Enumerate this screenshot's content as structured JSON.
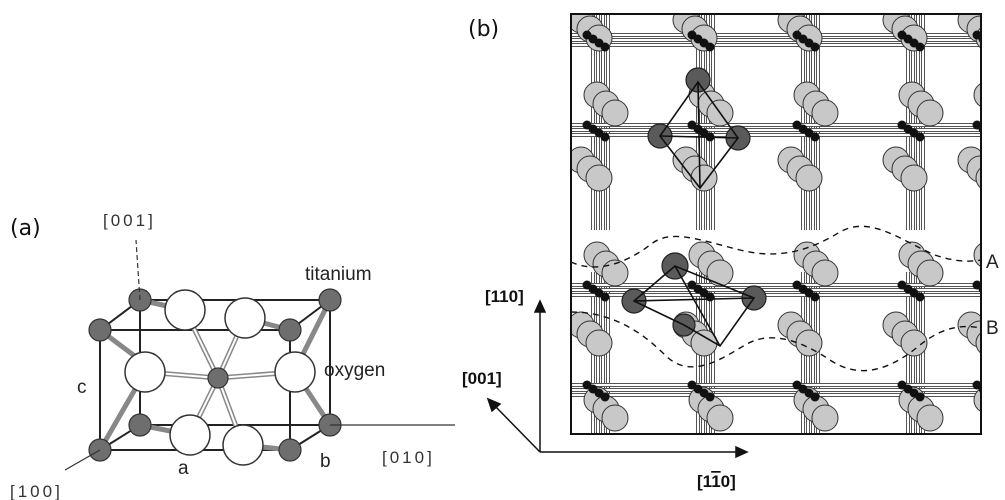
{
  "panel_a": {
    "label": "(a)",
    "axis_001": "[001]",
    "axis_100": "[100]",
    "axis_010": "[010]",
    "titanium_label": "titanium",
    "oxygen_label": "oxygen",
    "edge_a": "a",
    "edge_b": "b",
    "edge_c": "c"
  },
  "panel_b": {
    "label": "(b)",
    "axis_110": "[110]",
    "axis_001": "[001]",
    "axis_1m10_prefix": "[1",
    "axis_1m10_bar": "1",
    "axis_1m10_suffix": "0]",
    "layer_A": "A",
    "layer_B": "B"
  },
  "colors": {
    "titanium": "#6e6e6e",
    "oxygen": "#ffffff",
    "oxygen_b": "#c8c8c8",
    "ti_b": "#111111",
    "highlight": "#5a5a5a"
  }
}
